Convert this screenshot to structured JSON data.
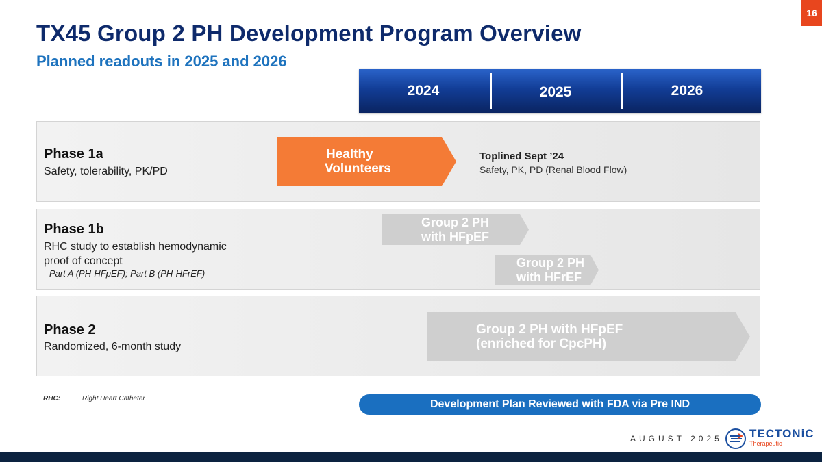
{
  "slide": {
    "number": "16"
  },
  "header": {
    "title": "TX45 Group 2 PH Development Program Overview",
    "subtitle": "Planned readouts in 2025 and 2026"
  },
  "timeline": {
    "years": [
      "2024",
      "2025",
      "2026"
    ]
  },
  "phases": [
    {
      "title": "Phase 1a",
      "description": "Safety, tolerability, PK/PD",
      "bars": [
        {
          "line1": "Healthy",
          "line2": "Volunteers"
        }
      ],
      "readout": {
        "title": "Toplined Sept ’24",
        "description": "Safety, PK, PD (Renal Blood Flow)"
      }
    },
    {
      "title": "Phase 1b",
      "description_line1": "RHC study to establish hemodynamic",
      "description_line2": "proof of concept",
      "note": "- Part A (PH-HFpEF); Part B (PH-HFrEF)",
      "bars": [
        {
          "line1": "Group 2 PH",
          "line2": "with HFpEF"
        },
        {
          "line1": "Group 2 PH",
          "line2": "with HFrEF"
        }
      ]
    },
    {
      "title": "Phase 2",
      "description": "Randomized, 6-month study",
      "bars": [
        {
          "line1": "Group 2 PH with HFpEF",
          "line2": "(enriched for CpcPH)"
        }
      ]
    }
  ],
  "abbreviation": {
    "key": "RHC:",
    "value": "Right Heart Catheter"
  },
  "fda_banner": "Development Plan Reviewed with FDA via Pre IND",
  "footer": {
    "date": "AUGUST 2025",
    "logo_name": "TECTONiC",
    "logo_sub": "Therapeutic"
  },
  "colors": {
    "title": "#0e2a6b",
    "subtitle": "#1e73be",
    "accent_orange": "#f47b36",
    "gray_bar": "#cfcfcf",
    "banner_blue": "#1a6fc0"
  }
}
